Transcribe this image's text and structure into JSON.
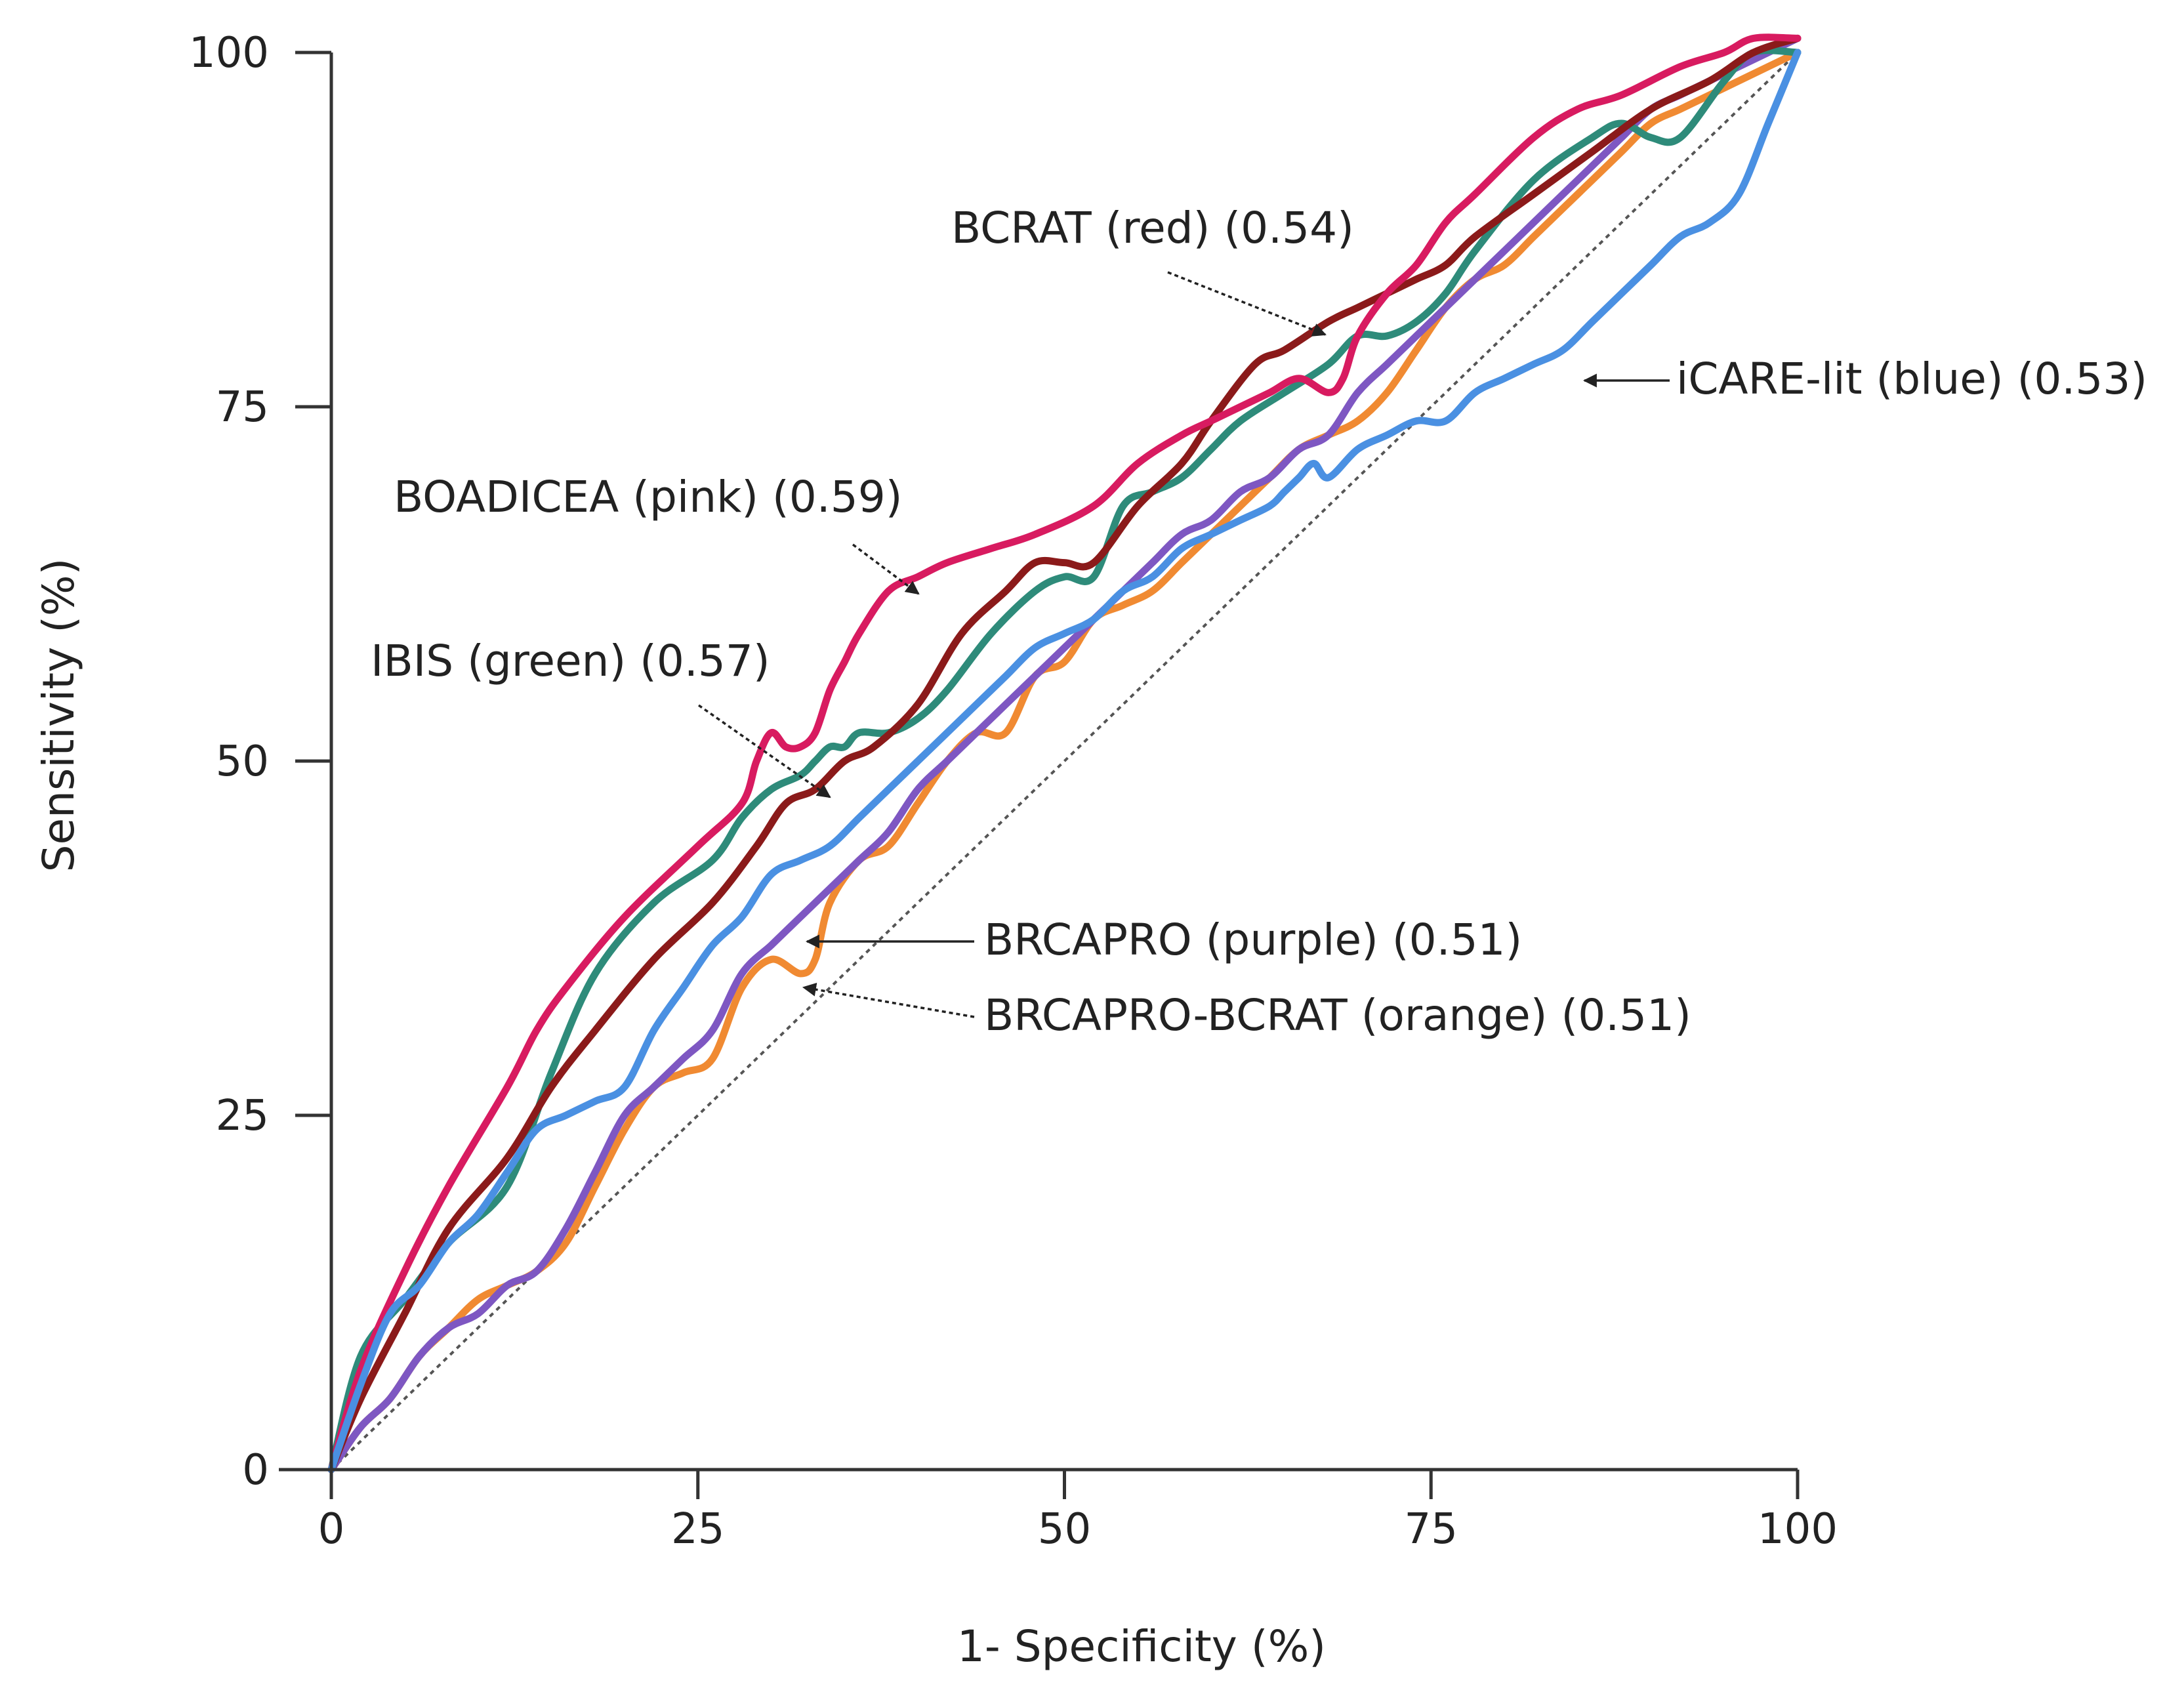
{
  "chart_data": {
    "type": "line",
    "title": "",
    "xlabel": "1- Specificity (%)",
    "ylabel": "Sensitivity (%)",
    "xlim": [
      0,
      100
    ],
    "ylim": [
      0,
      100
    ],
    "x_ticks": [
      "0",
      "25",
      "50",
      "75",
      "100"
    ],
    "y_ticks": [
      "0",
      "25",
      "50",
      "75",
      "100"
    ],
    "grid": false,
    "reference_line": {
      "name": "chance",
      "x": [
        0,
        100
      ],
      "y": [
        0,
        100
      ],
      "style": "dotted"
    },
    "series": [
      {
        "key": "boadicea",
        "name": "BOADICEA",
        "color": "#d81b60",
        "auc": "0.59",
        "x": [
          0,
          2,
          5,
          8,
          12,
          14,
          16,
          20,
          25,
          28,
          29,
          30,
          31,
          32,
          33,
          34,
          35,
          36,
          38,
          40,
          42,
          45,
          48,
          52,
          55,
          58,
          60,
          62,
          64,
          66,
          68,
          69,
          70,
          72,
          74,
          76,
          78,
          82,
          85,
          88,
          92,
          95,
          97,
          100
        ],
        "y": [
          0,
          7,
          14,
          20,
          27,
          31,
          34,
          39,
          44,
          47,
          50,
          52,
          51,
          51,
          52,
          55,
          57,
          59,
          62,
          63,
          64,
          65,
          66,
          68,
          71,
          73,
          74,
          75,
          76,
          77,
          76,
          77,
          80,
          83,
          85,
          88,
          90,
          94,
          96,
          97,
          99,
          100,
          101,
          101
        ]
      },
      {
        "key": "ibis",
        "name": "IBIS",
        "color": "#2e8b7a",
        "auc": "0.57",
        "x": [
          0,
          2,
          5,
          8,
          12,
          15,
          18,
          22,
          26,
          28,
          30,
          32,
          33,
          34,
          35,
          36,
          38,
          40,
          42,
          45,
          48,
          50,
          52,
          54,
          56,
          58,
          60,
          62,
          65,
          68,
          70,
          72,
          74,
          76,
          78,
          82,
          86,
          88,
          90,
          92,
          95,
          97,
          100
        ],
        "y": [
          0,
          8,
          12,
          16,
          20,
          28,
          35,
          40,
          43,
          46,
          48,
          49,
          50,
          51,
          51,
          52,
          52,
          53,
          55,
          59,
          62,
          63,
          63,
          68,
          69,
          70,
          72,
          74,
          76,
          78,
          80,
          80,
          81,
          83,
          86,
          91,
          94,
          95,
          94,
          94,
          98,
          100,
          100
        ]
      },
      {
        "key": "bcrat",
        "name": "BCRAT",
        "color": "#8b1a1a",
        "auc": "0.54",
        "x": [
          0,
          2,
          5,
          8,
          12,
          15,
          18,
          22,
          26,
          29,
          31,
          33,
          35,
          37,
          40,
          43,
          46,
          48,
          50,
          52,
          55,
          58,
          60,
          63,
          65,
          68,
          70,
          72,
          74,
          76,
          78,
          82,
          86,
          90,
          94,
          97,
          100
        ],
        "y": [
          0,
          5,
          11,
          17,
          22,
          27,
          31,
          36,
          40,
          44,
          47,
          48,
          50,
          51,
          54,
          59,
          62,
          64,
          64,
          64,
          68,
          71,
          74,
          78,
          79,
          81,
          82,
          83,
          84,
          85,
          87,
          90,
          93,
          96,
          98,
          100,
          101
        ]
      },
      {
        "key": "icare",
        "name": "iCARE-lit",
        "color": "#4a90e2",
        "auc": "0.53",
        "x": [
          0,
          2,
          4,
          6,
          8,
          10,
          12,
          14,
          16,
          18,
          20,
          22,
          24,
          26,
          28,
          30,
          32,
          34,
          36,
          38,
          40,
          42,
          44,
          46,
          48,
          50,
          52,
          54,
          56,
          58,
          60,
          62,
          64,
          65,
          66,
          67,
          68,
          70,
          72,
          74,
          76,
          78,
          80,
          82,
          84,
          86,
          88,
          90,
          92,
          94,
          96,
          98,
          100
        ],
        "y": [
          0,
          6,
          11,
          13,
          16,
          18,
          21,
          24,
          25,
          26,
          27,
          31,
          34,
          37,
          39,
          42,
          43,
          44,
          46,
          48,
          50,
          52,
          54,
          56,
          58,
          59,
          60,
          62,
          63,
          65,
          66,
          67,
          68,
          69,
          70,
          71,
          70,
          72,
          73,
          74,
          74,
          76,
          77,
          78,
          79,
          81,
          83,
          85,
          87,
          88,
          90,
          95,
          100
        ]
      },
      {
        "key": "brcapro",
        "name": "BRCAPRO",
        "color": "#7e57c2",
        "auc": "0.51",
        "x": [
          0,
          2,
          4,
          6,
          8,
          10,
          12,
          14,
          16,
          18,
          20,
          22,
          24,
          26,
          28,
          30,
          31,
          32,
          34,
          36,
          38,
          40,
          42,
          44,
          46,
          48,
          50,
          52,
          54,
          56,
          58,
          60,
          62,
          64,
          66,
          68,
          70,
          72,
          74,
          76,
          78,
          80,
          82,
          84,
          86,
          88,
          90,
          92,
          94,
          96,
          98,
          100
        ],
        "y": [
          0,
          3,
          5,
          8,
          10,
          11,
          13,
          14,
          17,
          21,
          25,
          27,
          29,
          31,
          35,
          37,
          38,
          39,
          41,
          43,
          45,
          48,
          50,
          52,
          54,
          56,
          58,
          60,
          62,
          64,
          66,
          67,
          69,
          70,
          72,
          73,
          76,
          78,
          80,
          82,
          84,
          86,
          88,
          90,
          92,
          94,
          96,
          97,
          98,
          99,
          100,
          101
        ]
      },
      {
        "key": "brcapro_bcrat",
        "name": "BRCAPRO-BCRAT",
        "color": "#f08a32",
        "auc": "0.51",
        "x": [
          0,
          2,
          4,
          6,
          8,
          10,
          12,
          14,
          16,
          18,
          20,
          22,
          24,
          26,
          28,
          30,
          32,
          33,
          34,
          36,
          38,
          40,
          42,
          44,
          46,
          48,
          50,
          52,
          54,
          56,
          58,
          60,
          62,
          64,
          66,
          68,
          70,
          72,
          74,
          76,
          78,
          80,
          82,
          84,
          86,
          88,
          90,
          92,
          94,
          96,
          98,
          100
        ],
        "y": [
          0,
          3,
          5,
          8,
          10,
          12,
          13,
          14,
          16,
          20,
          24,
          27,
          28,
          29,
          34,
          36,
          35,
          36,
          40,
          43,
          44,
          47,
          50,
          52,
          52,
          56,
          57,
          60,
          61,
          62,
          64,
          66,
          68,
          70,
          72,
          73,
          74,
          76,
          79,
          82,
          84,
          85,
          87,
          89,
          91,
          93,
          95,
          96,
          97,
          98,
          99,
          100
        ]
      }
    ],
    "annotations": [
      {
        "target": "bcrat",
        "text": "BCRAT (red) (0.54)"
      },
      {
        "target": "icare",
        "text": "iCARE-lit (blue) (0.53)"
      },
      {
        "target": "boadicea",
        "text": "BOADICEA (pink) (0.59)"
      },
      {
        "target": "ibis",
        "text": "IBIS  (green) (0.57)"
      },
      {
        "target": "brcapro",
        "text": "BRCAPRO (purple) (0.51)"
      },
      {
        "target": "brcapro_bcrat",
        "text": "BRCAPRO-BCRAT (orange) (0.51)"
      }
    ]
  }
}
